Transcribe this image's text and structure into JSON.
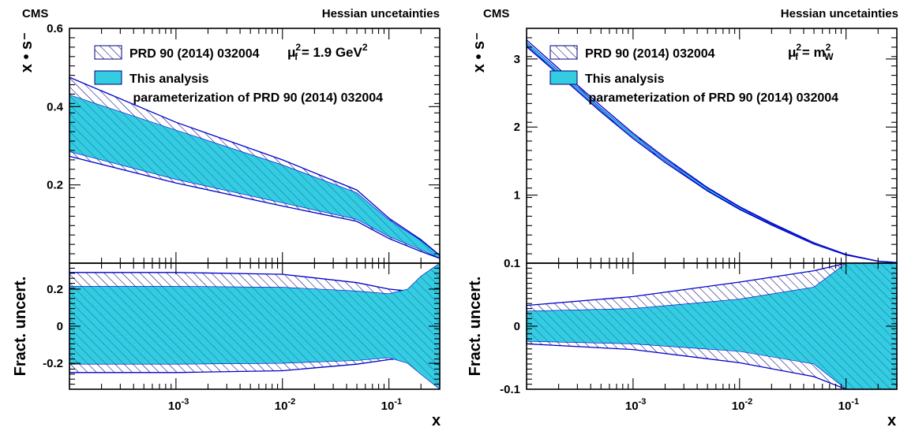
{
  "colors": {
    "hatch": "#000080",
    "fill": "#33cce0",
    "edge": "#0000cc",
    "frame": "#000000"
  },
  "chart_data": [
    {
      "type": "area",
      "header_left": "CMS",
      "header_right": "Hessian uncetainties",
      "scale_label": {
        "mu": "μ",
        "sup": "2",
        "sub": "f",
        "rest": " = 1.9 GeV",
        "rest_sup": "2"
      },
      "x_scale": "log",
      "xlim": [
        0.0001,
        0.3
      ],
      "xlabel": "x",
      "xticks": [
        {
          "base": "10",
          "exp": "-3",
          "value": 0.001
        },
        {
          "base": "10",
          "exp": "-2",
          "value": 0.01
        },
        {
          "base": "10",
          "exp": "-1",
          "value": 0.1
        }
      ],
      "legend": [
        {
          "style": "hatch",
          "label": "PRD 90 (2014) 032004"
        },
        {
          "style": "fill",
          "label": "This analysis"
        },
        {
          "style": "none",
          "label": " parameterization of PRD 90 (2014) 032004"
        }
      ],
      "top": {
        "ylabel": "x • s",
        "ylim": [
          0,
          0.6
        ],
        "yticks": [
          "0.2",
          "0.4",
          "0.6"
        ],
        "ytick_values": [
          0.2,
          0.4,
          0.6
        ],
        "x": [
          0.0001,
          0.001,
          0.01,
          0.05,
          0.1,
          0.2,
          0.3
        ],
        "series": [
          {
            "name": "PRD 90 (2014) 032004",
            "upper": [
              0.475,
              0.36,
              0.264,
              0.187,
              0.115,
              0.06,
              0.02
            ],
            "lower": [
              0.273,
              0.205,
              0.146,
              0.107,
              0.063,
              0.03,
              0.012
            ]
          },
          {
            "name": "This analysis",
            "upper": [
              0.43,
              0.34,
              0.251,
              0.18,
              0.111,
              0.058,
              0.019
            ],
            "lower": [
              0.285,
              0.214,
              0.154,
              0.112,
              0.068,
              0.034,
              0.013
            ]
          }
        ]
      },
      "bottom": {
        "ylabel": "Fract. uncert.",
        "ylim": [
          -0.34,
          0.34
        ],
        "yticks": [
          "-0.2",
          "0",
          "0.2"
        ],
        "ytick_values": [
          -0.2,
          0,
          0.2
        ],
        "x": [
          0.0001,
          0.001,
          0.01,
          0.05,
          0.1,
          0.15,
          0.2,
          0.3
        ],
        "series": [
          {
            "name": "PRD 90 (2014) 032004",
            "upper": [
              0.29,
              0.29,
              0.28,
              0.235,
              0.2,
              0.19,
              0.22,
              0.32
            ],
            "lower": [
              -0.25,
              -0.25,
              -0.24,
              -0.205,
              -0.18,
              -0.17,
              -0.19,
              -0.3
            ]
          },
          {
            "name": "This analysis",
            "upper": [
              0.215,
              0.215,
              0.21,
              0.19,
              0.175,
              0.2,
              0.27,
              0.34
            ],
            "lower": [
              -0.205,
              -0.205,
              -0.2,
              -0.185,
              -0.17,
              -0.2,
              -0.26,
              -0.34
            ]
          }
        ]
      }
    },
    {
      "type": "area",
      "header_left": "CMS",
      "header_right": "Hessian uncetainties",
      "scale_label": {
        "mu": "μ",
        "sup": "2",
        "sub": "f",
        "rest": " = m",
        "rest_sup": "2",
        "rest_sub": "W"
      },
      "x_scale": "log",
      "xlim": [
        0.0001,
        0.3
      ],
      "xlabel": "x",
      "xticks": [
        {
          "base": "10",
          "exp": "-3",
          "value": 0.001
        },
        {
          "base": "10",
          "exp": "-2",
          "value": 0.01
        },
        {
          "base": "10",
          "exp": "-1",
          "value": 0.1
        }
      ],
      "legend": [
        {
          "style": "hatch",
          "label": "PRD 90 (2014) 032004"
        },
        {
          "style": "fill",
          "label": "This analysis"
        },
        {
          "style": "none",
          "label": " parameterization of PRD 90 (2014) 032004"
        }
      ],
      "top": {
        "ylabel": "x • s",
        "ylim": [
          0,
          3.45
        ],
        "yticks": [
          "1",
          "2",
          "3"
        ],
        "ytick_values": [
          1,
          2,
          3
        ],
        "x": [
          0.0001,
          0.0002,
          0.0005,
          0.001,
          0.002,
          0.005,
          0.01,
          0.02,
          0.05,
          0.1,
          0.2,
          0.3
        ],
        "series": [
          {
            "name": "PRD 90 (2014) 032004",
            "upper": [
              3.28,
              2.86,
              2.31,
              1.91,
              1.55,
              1.11,
              0.83,
              0.59,
              0.3,
              0.13,
              0.03,
              0.01
            ],
            "lower": [
              3.18,
              2.77,
              2.22,
              1.83,
              1.48,
              1.06,
              0.79,
              0.56,
              0.28,
              0.12,
              0.028,
              0.008
            ]
          },
          {
            "name": "This analysis",
            "upper": [
              3.25,
              2.83,
              2.28,
              1.89,
              1.53,
              1.1,
              0.82,
              0.58,
              0.295,
              0.128,
              0.03,
              0.01
            ],
            "lower": [
              3.2,
              2.79,
              2.24,
              1.85,
              1.5,
              1.07,
              0.8,
              0.57,
              0.285,
              0.122,
              0.029,
              0.009
            ]
          }
        ]
      },
      "bottom": {
        "ylabel": "Fract. uncert.",
        "ylim": [
          -0.1,
          0.1
        ],
        "yticks": [
          "-0.1",
          "0",
          "0.1"
        ],
        "ytick_values": [
          -0.1,
          0,
          0.1
        ],
        "x": [
          0.0001,
          0.001,
          0.01,
          0.05,
          0.1,
          0.2,
          0.3
        ],
        "series": [
          {
            "name": "PRD 90 (2014) 032004",
            "upper": [
              0.033,
              0.047,
              0.07,
              0.088,
              0.1,
              0.1,
              0.1
            ],
            "lower": [
              -0.028,
              -0.037,
              -0.058,
              -0.08,
              -0.1,
              -0.1,
              -0.1
            ]
          },
          {
            "name": "This analysis",
            "upper": [
              0.024,
              0.028,
              0.043,
              0.062,
              0.1,
              0.1,
              0.1
            ],
            "lower": [
              -0.024,
              -0.028,
              -0.04,
              -0.06,
              -0.1,
              -0.1,
              -0.1
            ]
          }
        ]
      }
    }
  ]
}
